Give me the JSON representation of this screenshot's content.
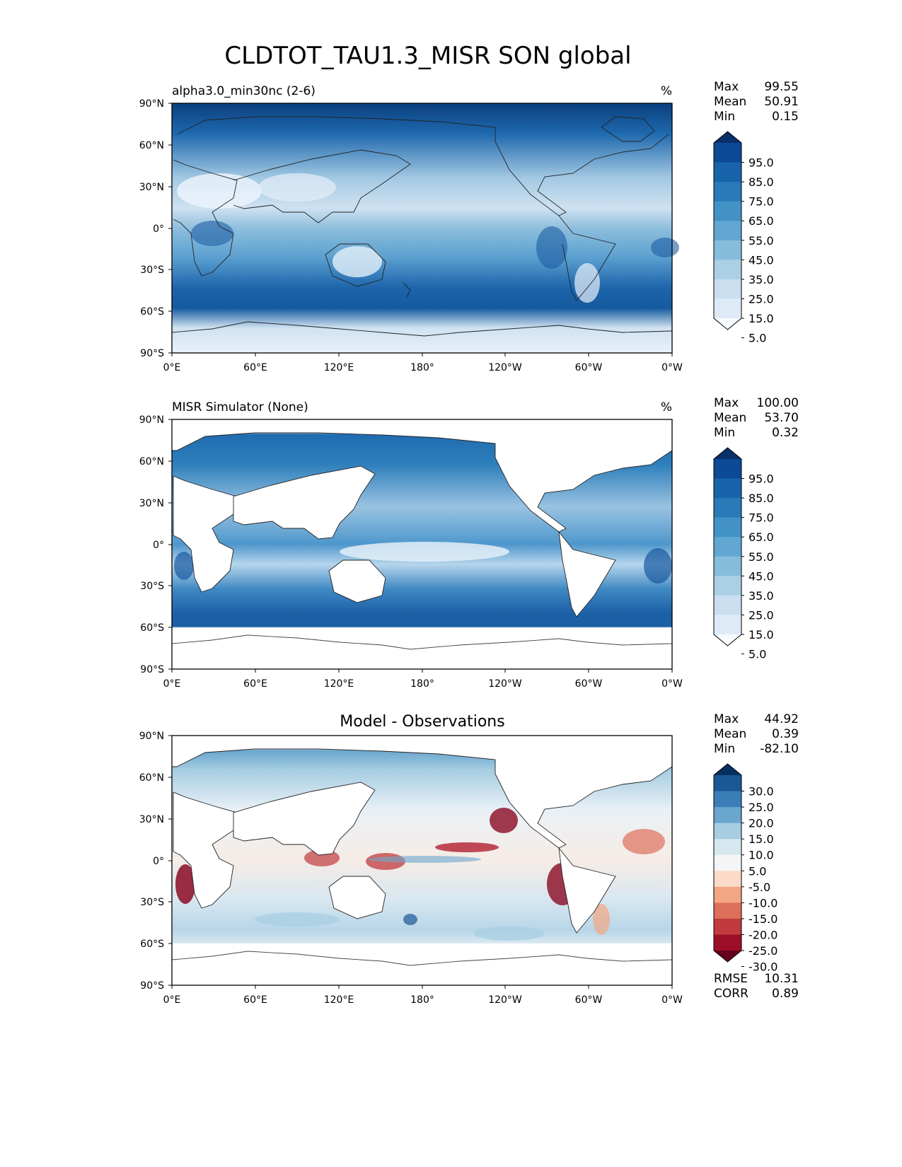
{
  "title": "CLDTOT_TAU1.3_MISR SON global",
  "ticks": {
    "lat": [
      "90°N",
      "60°N",
      "30°N",
      "0°",
      "30°S",
      "60°S",
      "90°S"
    ],
    "lon": [
      "0°E",
      "60°E",
      "120°E",
      "180°",
      "120°W",
      "60°W",
      "0°W"
    ]
  },
  "panels": [
    {
      "left_title": "alpha3.0_min30nc (2-6)",
      "units": "%",
      "stats": [
        {
          "label": "Max",
          "value": "99.55"
        },
        {
          "label": "Mean",
          "value": "50.91"
        },
        {
          "label": "Min",
          "value": "0.15"
        }
      ],
      "colorbar": {
        "labels": [
          "95.0",
          "85.0",
          "75.0",
          "65.0",
          "55.0",
          "45.0",
          "35.0",
          "25.0",
          "15.0",
          "5.0"
        ],
        "colors": [
          "#08306b",
          "#0c4a95",
          "#1764ab",
          "#2a7ab9",
          "#4292c6",
          "#61a7d2",
          "#87bddc",
          "#abd0e6",
          "#cadef0",
          "#deebf7",
          "#f7fbff"
        ]
      }
    },
    {
      "left_title": "MISR Simulator (None)",
      "units": "%",
      "stats": [
        {
          "label": "Max",
          "value": "100.00"
        },
        {
          "label": "Mean",
          "value": "53.70"
        },
        {
          "label": "Min",
          "value": "0.32"
        }
      ],
      "colorbar": {
        "labels": [
          "95.0",
          "85.0",
          "75.0",
          "65.0",
          "55.0",
          "45.0",
          "35.0",
          "25.0",
          "15.0",
          "5.0"
        ],
        "colors": [
          "#08306b",
          "#0c4a95",
          "#1764ab",
          "#2a7ab9",
          "#4292c6",
          "#61a7d2",
          "#87bddc",
          "#abd0e6",
          "#cadef0",
          "#deebf7",
          "#f7fbff"
        ]
      }
    },
    {
      "center_title": "Model - Observations",
      "stats": [
        {
          "label": "Max",
          "value": "44.92"
        },
        {
          "label": "Mean",
          "value": "0.39"
        },
        {
          "label": "Min",
          "value": "-82.10"
        }
      ],
      "colorbar": {
        "labels": [
          "30.0",
          "25.0",
          "20.0",
          "15.0",
          "10.0",
          "5.0",
          "-5.0",
          "-10.0",
          "-15.0",
          "-20.0",
          "-25.0",
          "-30.0"
        ],
        "colors": [
          "#053061",
          "#1a5796",
          "#3a7fb8",
          "#6aa6cd",
          "#a6cde2",
          "#d7e7f0",
          "#f5f5f5",
          "#fbdbc8",
          "#f3a683",
          "#de6f5a",
          "#c13a3e",
          "#9c0f26",
          "#67001f"
        ]
      },
      "bottom_stats": [
        {
          "label": "RMSE",
          "value": "10.31"
        },
        {
          "label": "CORR",
          "value": "0.89"
        }
      ]
    }
  ]
}
